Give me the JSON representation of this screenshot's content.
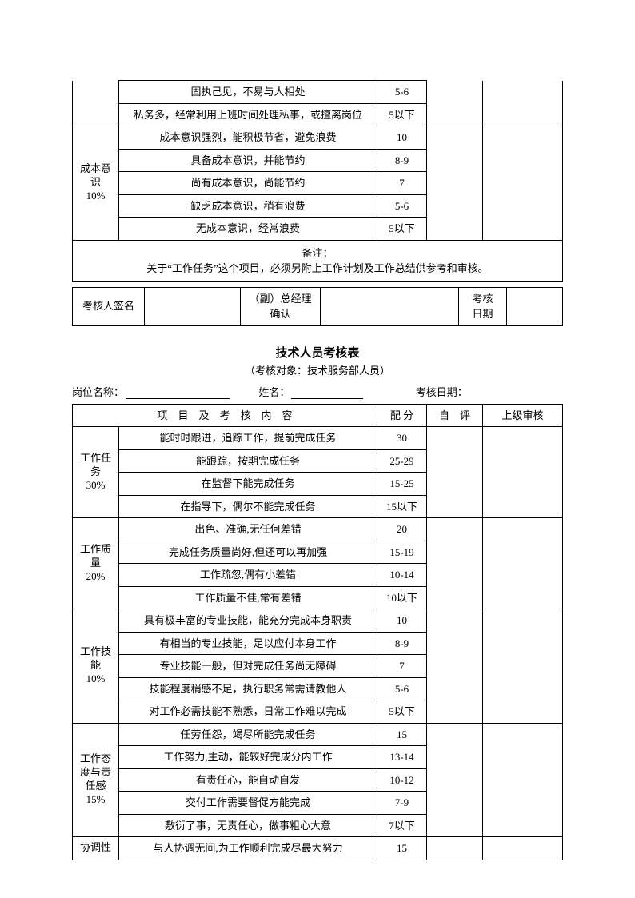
{
  "top_table": {
    "rows_first": [
      {
        "desc": "固执己见，不易与人相处",
        "score": "5-6"
      },
      {
        "desc": "私务多，经常利用上班时间处理私事，或擅离岗位",
        "score": "5以下"
      }
    ],
    "cat": {
      "l1": "成本意",
      "l2": "识",
      "l3": "10%"
    },
    "rows_cat": [
      {
        "desc": "成本意识强烈，能积极节省，避免浪费",
        "score": "10"
      },
      {
        "desc": "具备成本意识，并能节约",
        "score": "8-9"
      },
      {
        "desc": "尚有成本意识，尚能节约",
        "score": "7"
      },
      {
        "desc": "缺乏成本意识，稍有浪费",
        "score": "5-6"
      },
      {
        "desc": "无成本意识，经常浪费",
        "score": "5以下"
      }
    ],
    "note_l1": "备注：",
    "note_l2": "关于“工作任务”这个项目，必须另附上工作计划及工作总结供参考和审核。",
    "sign": {
      "name_label": "考核人签名",
      "mgr_l1": "（副）总经理",
      "mgr_l2": "确认",
      "date_l1": "考核",
      "date_l2": "日期"
    }
  },
  "title": {
    "main": "技术人员考核表",
    "sub": "（考核对象：技术服务部人员）"
  },
  "header": {
    "post_label": "岗位名称：",
    "name_label": "姓名：",
    "date_label": "考核日期："
  },
  "main_table": {
    "header": {
      "proj": "项　目　及　考　核　内　容",
      "score": "配 分",
      "self": "自　评",
      "upper": "上级审核"
    },
    "sections": [
      {
        "cat_lines": [
          "工作任",
          "务",
          "30%"
        ],
        "rows": [
          {
            "desc": "能时时跟进，追踪工作，提前完成任务",
            "score": "30"
          },
          {
            "desc": "能跟踪，按期完成任务",
            "score": "25-29"
          },
          {
            "desc": "在监督下能完成任务",
            "score": "15-25"
          },
          {
            "desc": "在指导下，偶尔不能完成任务",
            "score": "15以下"
          }
        ]
      },
      {
        "cat_lines": [
          "工作质",
          "量",
          "20%"
        ],
        "rows": [
          {
            "desc": "出色、准确,无任何差错",
            "score": "20"
          },
          {
            "desc": "完成任务质量尚好,但还可以再加强",
            "score": "15-19"
          },
          {
            "desc": "工作疏忽,偶有小差错",
            "score": "10-14"
          },
          {
            "desc": "工作质量不佳,常有差错",
            "score": "10以下"
          }
        ]
      },
      {
        "cat_lines": [
          "工作技",
          "能",
          "10%"
        ],
        "rows": [
          {
            "desc": "具有极丰富的专业技能，能充分完成本身职责",
            "score": "10"
          },
          {
            "desc": "有相当的专业技能，足以应付本身工作",
            "score": "8-9"
          },
          {
            "desc": "专业技能一般，但对完成任务尚无障碍",
            "score": "7"
          },
          {
            "desc": "技能程度稍感不足，执行职务常需请教他人",
            "score": "5-6"
          },
          {
            "desc": "对工作必需技能不熟悉，日常工作难以完成",
            "score": "5以下"
          }
        ]
      },
      {
        "cat_lines": [
          "工作态",
          "度与责",
          "任感",
          "15%"
        ],
        "rows": [
          {
            "desc": "任劳任怨，竭尽所能完成任务",
            "score": "15"
          },
          {
            "desc": "工作努力,主动，能较好完成分内工作",
            "score": "13-14"
          },
          {
            "desc": "有责任心，能自动自发",
            "score": "10-12"
          },
          {
            "desc": "交付工作需要督促方能完成",
            "score": "7-9"
          },
          {
            "desc": "敷衍了事，无责任心，做事粗心大意",
            "score": "7以下"
          }
        ]
      },
      {
        "cat_lines": [
          "协调性"
        ],
        "rows": [
          {
            "desc": "与人协调无间,为工作顺利完成尽最大努力",
            "score": "15"
          }
        ]
      }
    ]
  }
}
